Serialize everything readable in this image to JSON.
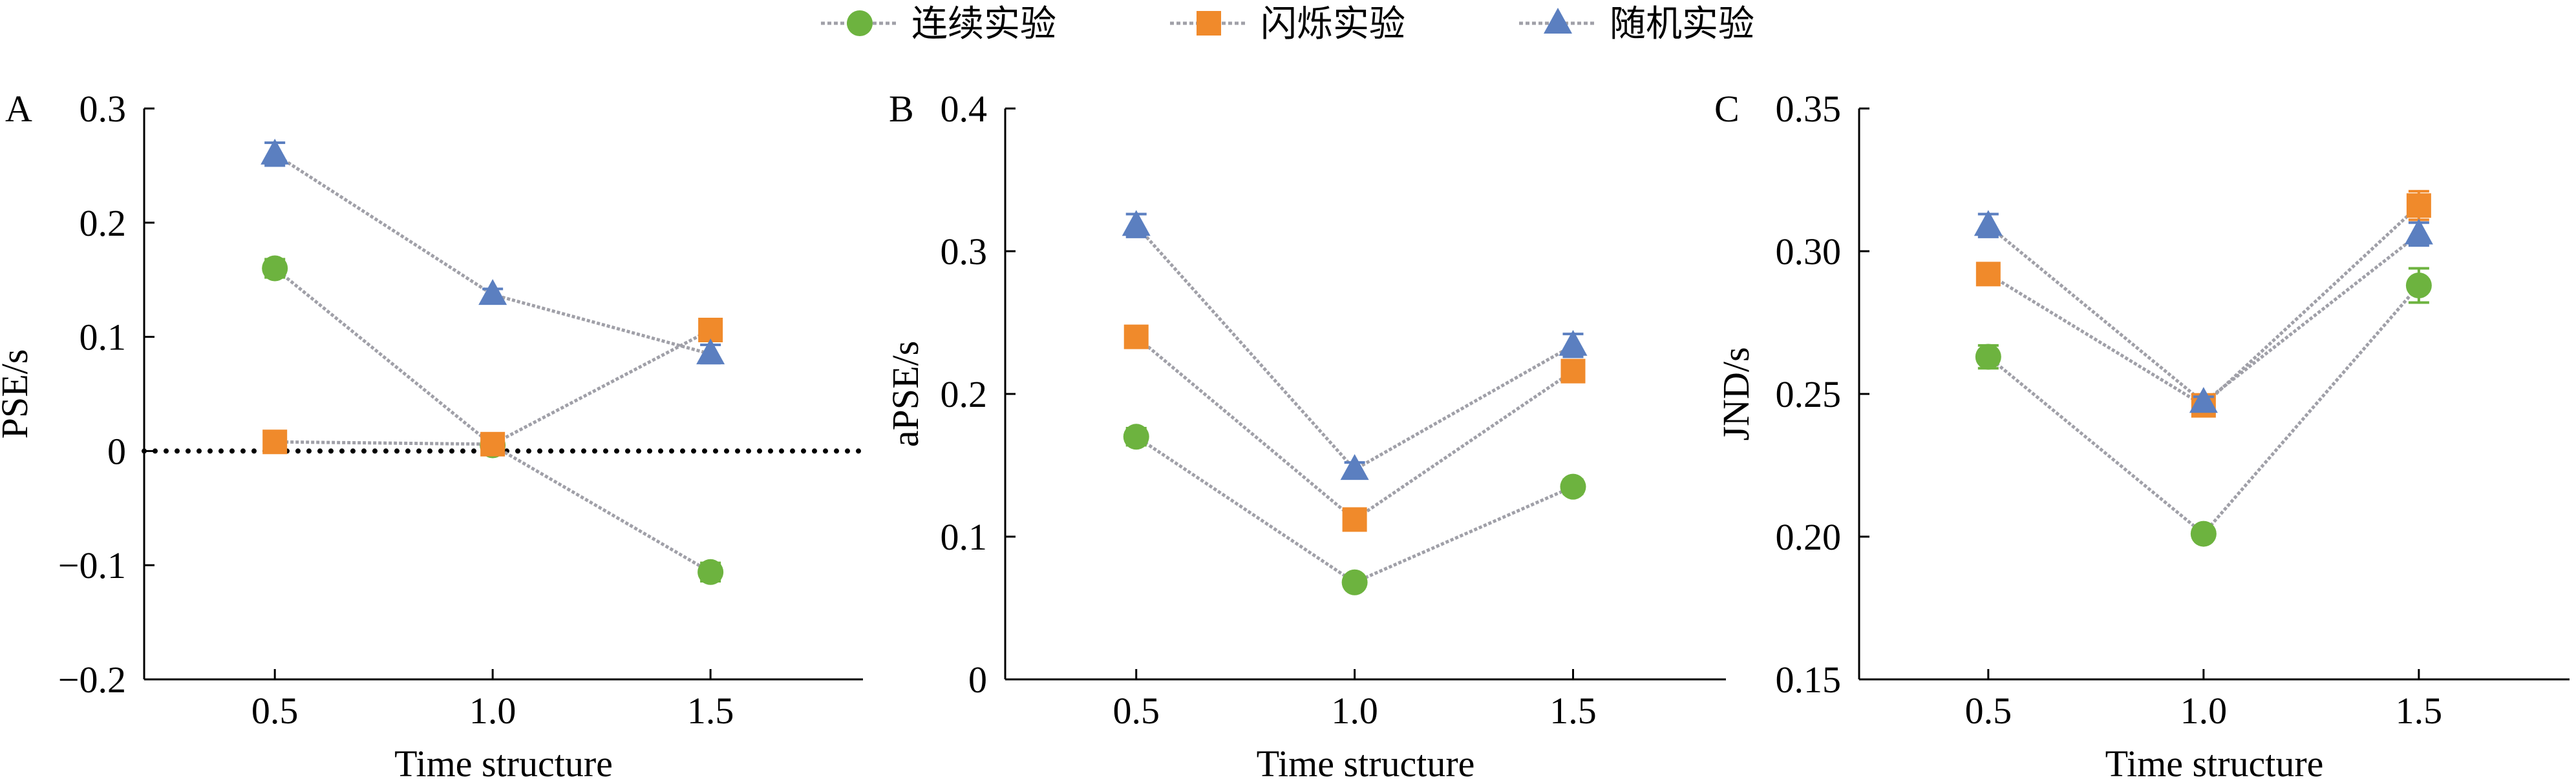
{
  "colors": {
    "green": "#6db33f",
    "orange": "#f08a2b",
    "blue": "#5b7fc0",
    "line": "#a0a0a8",
    "axis": "#000000"
  },
  "legend": {
    "items": [
      {
        "label": "连续实验",
        "series": "continuous",
        "marker": "circle"
      },
      {
        "label": "闪烁实验",
        "series": "flicker",
        "marker": "square"
      },
      {
        "label": "随机实验",
        "series": "random",
        "marker": "triangle"
      }
    ]
  },
  "chart_data": [
    {
      "type": "line",
      "panel": "A",
      "xlabel": "Time structure",
      "ylabel": "PSE/s",
      "x": [
        0.5,
        1.0,
        1.5
      ],
      "x_tick_labels": [
        "0.5",
        "1.0",
        "1.5"
      ],
      "xlim": [
        0.2,
        1.85
      ],
      "ylim": [
        -0.2,
        0.3
      ],
      "y_ticks": [
        -0.2,
        -0.1,
        0,
        0.1,
        0.2,
        0.3
      ],
      "y_tick_labels": [
        "−0.2",
        "−0.1",
        "0",
        "0.1",
        "0.2",
        "0.3"
      ],
      "reference_line": 0,
      "series": [
        {
          "name": "连续实验",
          "key": "continuous",
          "values": [
            0.16,
            0.005,
            -0.106
          ],
          "errors": [
            0.008,
            0.004,
            0.008
          ]
        },
        {
          "name": "闪烁实验",
          "key": "flicker",
          "values": [
            0.008,
            0.006,
            0.106
          ],
          "errors": [
            0.004,
            0.004,
            0.006
          ]
        },
        {
          "name": "随机实验",
          "key": "random",
          "values": [
            0.26,
            0.137,
            0.085
          ],
          "errors": [
            0.01,
            0.005,
            0.008
          ]
        }
      ]
    },
    {
      "type": "line",
      "panel": "B",
      "xlabel": "Time structure",
      "ylabel": "aPSE/s",
      "x": [
        0.5,
        1.0,
        1.5
      ],
      "x_tick_labels": [
        "0.5",
        "1.0",
        "1.5"
      ],
      "xlim": [
        0.2,
        1.85
      ],
      "ylim": [
        0,
        0.4
      ],
      "y_ticks": [
        0,
        0.1,
        0.2,
        0.3,
        0.4
      ],
      "y_tick_labels": [
        "0",
        "0.1",
        "0.2",
        "0.3",
        "0.4"
      ],
      "series": [
        {
          "name": "连续实验",
          "key": "continuous",
          "values": [
            0.17,
            0.068,
            0.135
          ],
          "errors": [
            0.006,
            0.003,
            0.005
          ]
        },
        {
          "name": "闪烁实验",
          "key": "flicker",
          "values": [
            0.24,
            0.112,
            0.216
          ],
          "errors": [
            0.005,
            0.004,
            0.006
          ]
        },
        {
          "name": "随机实验",
          "key": "random",
          "values": [
            0.318,
            0.147,
            0.234
          ],
          "errors": [
            0.008,
            0.005,
            0.008
          ]
        }
      ]
    },
    {
      "type": "line",
      "panel": "C",
      "xlabel": "Time structure",
      "ylabel": "JND/s",
      "x": [
        0.5,
        1.0,
        1.5
      ],
      "x_tick_labels": [
        "0.5",
        "1.0",
        "1.5"
      ],
      "xlim": [
        0.2,
        1.85
      ],
      "ylim": [
        0.15,
        0.35
      ],
      "y_ticks": [
        0.15,
        0.2,
        0.25,
        0.3,
        0.35
      ],
      "y_tick_labels": [
        "0.15",
        "0.20",
        "0.25",
        "0.30",
        "0.35"
      ],
      "series": [
        {
          "name": "连续实验",
          "key": "continuous",
          "values": [
            0.263,
            0.201,
            0.288
          ],
          "errors": [
            0.004,
            0.002,
            0.006
          ]
        },
        {
          "name": "闪烁实验",
          "key": "flicker",
          "values": [
            0.292,
            0.246,
            0.316
          ],
          "errors": [
            0.003,
            0.003,
            0.005
          ]
        },
        {
          "name": "随机实验",
          "key": "random",
          "values": [
            0.309,
            0.247,
            0.306
          ],
          "errors": [
            0.004,
            0.002,
            0.004
          ]
        }
      ]
    }
  ]
}
